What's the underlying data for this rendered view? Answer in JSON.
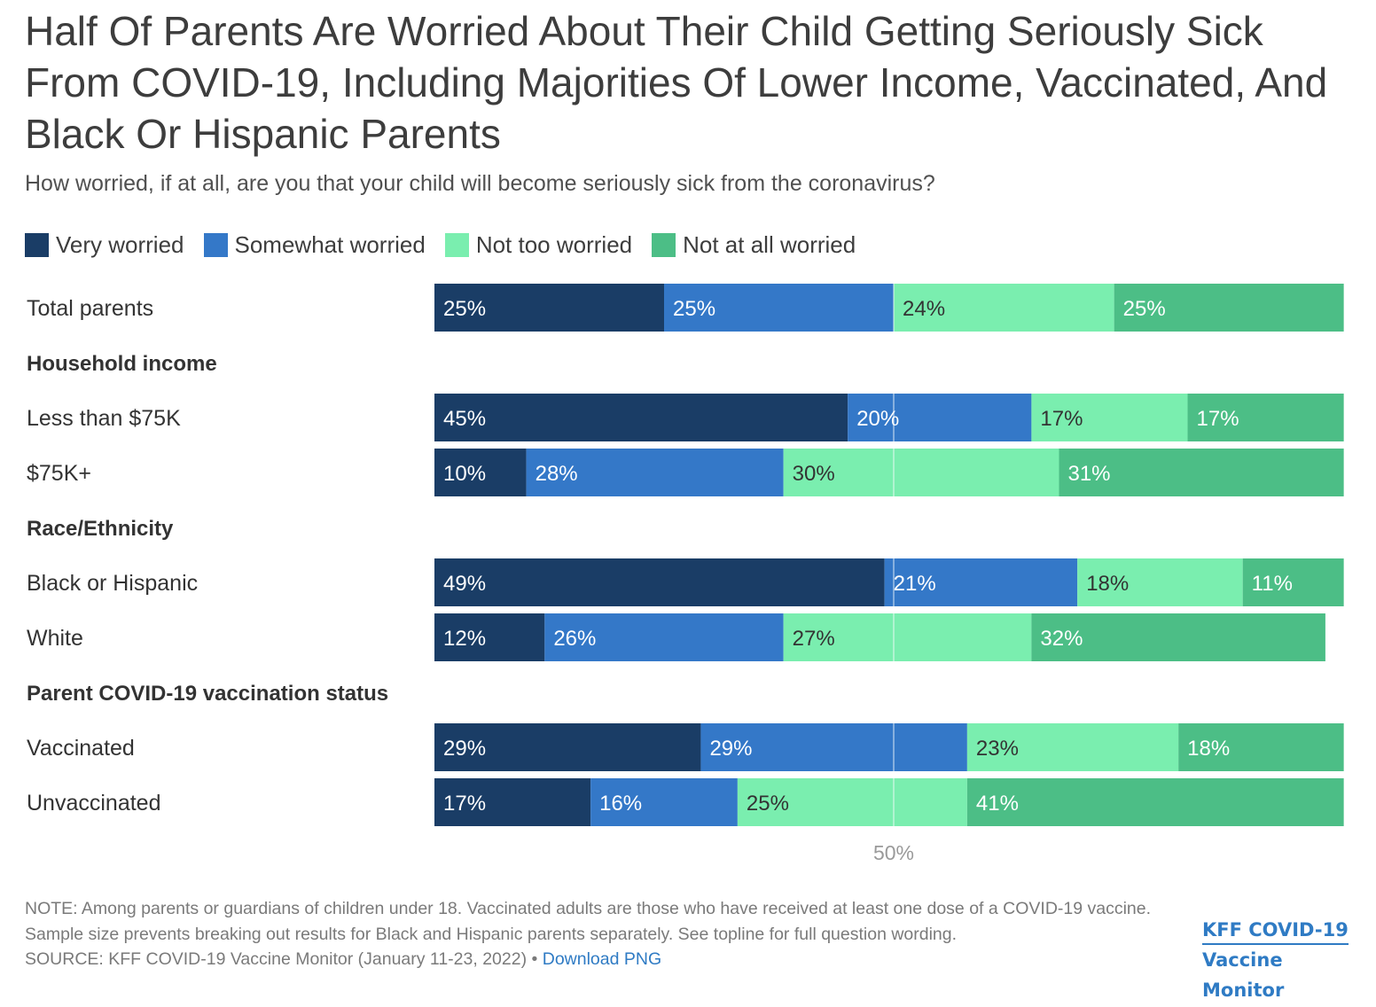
{
  "chart_data": {
    "type": "bar",
    "orientation": "horizontal",
    "stacked": true,
    "title": "Half Of Parents Are Worried About Their Child Getting Seriously Sick From COVID-19, Including Majorities Of Lower Income, Vaccinated, And Black Or Hispanic Parents",
    "subtitle": "How worried, if at all, are you that your child will become seriously sick from the coronavirus?",
    "xlim": [
      0,
      100
    ],
    "reference_line": {
      "value": 50,
      "label": "50%"
    },
    "series": [
      {
        "name": "Very worried",
        "color": "#1a3d66"
      },
      {
        "name": "Somewhat worried",
        "color": "#3478c8"
      },
      {
        "name": "Not too worried",
        "color": "#7aeeaf"
      },
      {
        "name": "Not at all worried",
        "color": "#4cbe86"
      }
    ],
    "rows": [
      {
        "kind": "bar",
        "label": "Total parents",
        "values": [
          25,
          25,
          24,
          25
        ]
      },
      {
        "kind": "header",
        "label": "Household income"
      },
      {
        "kind": "bar",
        "label": "Less than $75K",
        "values": [
          45,
          20,
          17,
          17
        ]
      },
      {
        "kind": "bar",
        "label": "$75K+",
        "values": [
          10,
          28,
          30,
          31
        ]
      },
      {
        "kind": "header",
        "label": "Race/Ethnicity"
      },
      {
        "kind": "bar",
        "label": "Black or Hispanic",
        "values": [
          49,
          21,
          18,
          11
        ]
      },
      {
        "kind": "bar",
        "label": "White",
        "values": [
          12,
          26,
          27,
          32
        ]
      },
      {
        "kind": "header",
        "label": "Parent COVID-19 vaccination status"
      },
      {
        "kind": "bar",
        "label": "Vaccinated",
        "values": [
          29,
          29,
          23,
          18
        ]
      },
      {
        "kind": "bar",
        "label": "Unvaccinated",
        "values": [
          17,
          16,
          25,
          41
        ]
      }
    ]
  },
  "notes": {
    "note": "NOTE: Among parents or guardians of children under 18. Vaccinated adults are those who have received at least one dose of a COVID-19 vaccine. Sample size prevents breaking out results for Black and Hispanic parents separately. See topline for full question wording.",
    "source": "SOURCE: KFF COVID-19 Vaccine Monitor (January 11-23, 2022) •",
    "download_label": "Download PNG"
  },
  "logo": {
    "line1": "KFF COVID-19",
    "line2": "Vaccine Monitor"
  }
}
